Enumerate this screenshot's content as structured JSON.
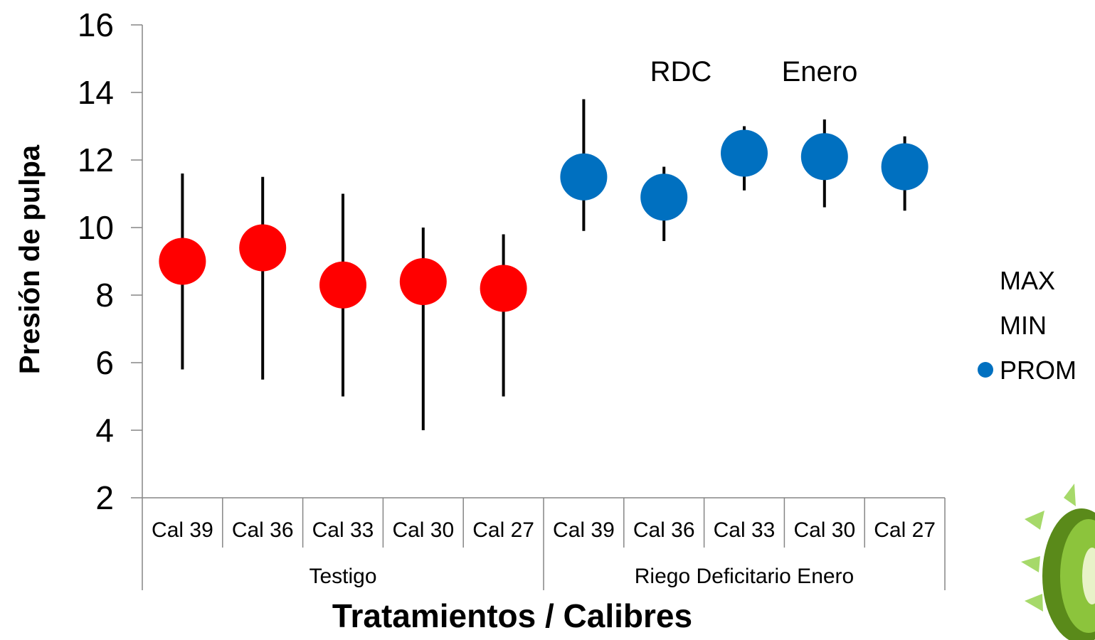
{
  "chart_data": {
    "type": "scatter",
    "ylabel": "Presión de pulpa",
    "xlabel": "Tratamientos / Calibres",
    "ylim": [
      2,
      16
    ],
    "yticks": [
      2,
      4,
      6,
      8,
      10,
      12,
      14,
      16
    ],
    "categories": [
      "Cal 39",
      "Cal 36",
      "Cal 33",
      "Cal 30",
      "Cal 27",
      "Cal 39",
      "Cal 36",
      "Cal 33",
      "Cal 30",
      "Cal 27"
    ],
    "groups": [
      {
        "label": "Testigo",
        "start": 0,
        "end": 5
      },
      {
        "label": "Riego Deficitario Enero",
        "start": 5,
        "end": 10
      }
    ],
    "series": [
      {
        "name": "MAX",
        "values": [
          11.6,
          11.5,
          11.0,
          10.0,
          9.8,
          13.8,
          11.8,
          13.0,
          13.2,
          12.7
        ]
      },
      {
        "name": "MIN",
        "values": [
          5.8,
          5.5,
          5.0,
          4.0,
          5.0,
          9.9,
          9.6,
          11.1,
          10.6,
          10.5
        ]
      },
      {
        "name": "PROM",
        "values": [
          9.0,
          9.4,
          8.3,
          8.4,
          8.2,
          11.5,
          10.9,
          12.2,
          12.1,
          11.8
        ]
      }
    ],
    "point_colors": [
      "#ff0000",
      "#ff0000",
      "#ff0000",
      "#ff0000",
      "#ff0000",
      "#0070c0",
      "#0070c0",
      "#0070c0",
      "#0070c0",
      "#0070c0"
    ],
    "legend": {
      "position": "right",
      "entries": [
        "MAX",
        "MIN",
        "PROM"
      ],
      "marker_color": "#0070c0"
    },
    "annotations": [
      "RDC",
      "Enero"
    ],
    "grid": false
  }
}
